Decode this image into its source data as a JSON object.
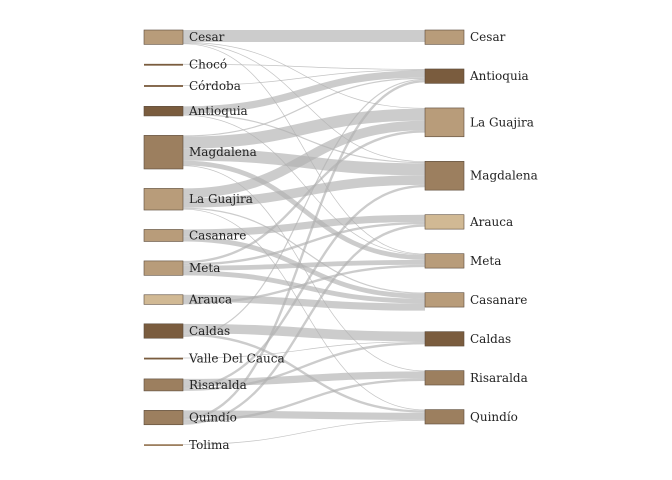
{
  "chart_data": {
    "type": "sankey",
    "colors": {
      "link": "#b0b0b0",
      "node_stroke": "#5a4a3a",
      "dark": "#7a5c3e",
      "mid": "#9c7f5f",
      "light": "#b89c7a",
      "pale": "#d1b994"
    },
    "source_nodes": [
      {
        "label": "Cesar",
        "value": 6,
        "color": "light"
      },
      {
        "label": "Chocó",
        "value": 0.3,
        "color": "dark"
      },
      {
        "label": "Córdoba",
        "value": 0.3,
        "color": "dark"
      },
      {
        "label": "Antioquia",
        "value": 4,
        "color": "dark"
      },
      {
        "label": "Magdalena",
        "value": 14,
        "color": "mid"
      },
      {
        "label": "La Guajira",
        "value": 9,
        "color": "light"
      },
      {
        "label": "Casanare",
        "value": 5,
        "color": "light"
      },
      {
        "label": "Meta",
        "value": 6,
        "color": "light"
      },
      {
        "label": "Arauca",
        "value": 4,
        "color": "pale"
      },
      {
        "label": "Caldas",
        "value": 6,
        "color": "dark"
      },
      {
        "label": "Valle Del Cauca",
        "value": 0.3,
        "color": "dark"
      },
      {
        "label": "Risaralda",
        "value": 5,
        "color": "mid"
      },
      {
        "label": "Quindío",
        "value": 6,
        "color": "mid"
      },
      {
        "label": "Tolima",
        "value": 0.3,
        "color": "mid"
      }
    ],
    "target_nodes": [
      {
        "label": "Cesar",
        "value": 6,
        "color": "light"
      },
      {
        "label": "Antioquia",
        "value": 6,
        "color": "dark"
      },
      {
        "label": "La Guajira",
        "value": 12,
        "color": "light"
      },
      {
        "label": "Magdalena",
        "value": 12,
        "color": "mid"
      },
      {
        "label": "Arauca",
        "value": 6,
        "color": "pale"
      },
      {
        "label": "Meta",
        "value": 6,
        "color": "light"
      },
      {
        "label": "Casanare",
        "value": 6,
        "color": "light"
      },
      {
        "label": "Caldas",
        "value": 6,
        "color": "dark"
      },
      {
        "label": "Risaralda",
        "value": 6,
        "color": "mid"
      },
      {
        "label": "Quindío",
        "value": 6,
        "color": "mid"
      }
    ],
    "links": [
      {
        "source": 0,
        "target": 0,
        "value": 5
      },
      {
        "source": 0,
        "target": 2,
        "value": 0.3
      },
      {
        "source": 0,
        "target": 3,
        "value": 0.3
      },
      {
        "source": 0,
        "target": 5,
        "value": 0.3
      },
      {
        "source": 1,
        "target": 1,
        "value": 0.3
      },
      {
        "source": 2,
        "target": 1,
        "value": 0.3
      },
      {
        "source": 3,
        "target": 1,
        "value": 3
      },
      {
        "source": 3,
        "target": 3,
        "value": 0.5
      },
      {
        "source": 3,
        "target": 5,
        "value": 0.3
      },
      {
        "source": 4,
        "target": 1,
        "value": 0.5
      },
      {
        "source": 4,
        "target": 2,
        "value": 5
      },
      {
        "source": 4,
        "target": 3,
        "value": 5
      },
      {
        "source": 4,
        "target": 5,
        "value": 2
      },
      {
        "source": 4,
        "target": 8,
        "value": 0.3
      },
      {
        "source": 5,
        "target": 2,
        "value": 4
      },
      {
        "source": 5,
        "target": 3,
        "value": 4
      },
      {
        "source": 5,
        "target": 6,
        "value": 0.5
      },
      {
        "source": 5,
        "target": 9,
        "value": 0.3
      },
      {
        "source": 6,
        "target": 4,
        "value": 3
      },
      {
        "source": 6,
        "target": 6,
        "value": 2
      },
      {
        "source": 7,
        "target": 2,
        "value": 1
      },
      {
        "source": 7,
        "target": 4,
        "value": 1
      },
      {
        "source": 7,
        "target": 5,
        "value": 2
      },
      {
        "source": 7,
        "target": 6,
        "value": 2
      },
      {
        "source": 8,
        "target": 6,
        "value": 3
      },
      {
        "source": 8,
        "target": 5,
        "value": 1
      },
      {
        "source": 9,
        "target": 7,
        "value": 4
      },
      {
        "source": 9,
        "target": 9,
        "value": 1
      },
      {
        "source": 9,
        "target": 1,
        "value": 0.5
      },
      {
        "source": 10,
        "target": 7,
        "value": 0.3
      },
      {
        "source": 11,
        "target": 8,
        "value": 3
      },
      {
        "source": 11,
        "target": 3,
        "value": 1
      },
      {
        "source": 11,
        "target": 7,
        "value": 1
      },
      {
        "source": 12,
        "target": 9,
        "value": 3
      },
      {
        "source": 12,
        "target": 1,
        "value": 1
      },
      {
        "source": 12,
        "target": 8,
        "value": 1
      },
      {
        "source": 12,
        "target": 4,
        "value": 1
      },
      {
        "source": 13,
        "target": 9,
        "value": 0.3
      }
    ]
  }
}
